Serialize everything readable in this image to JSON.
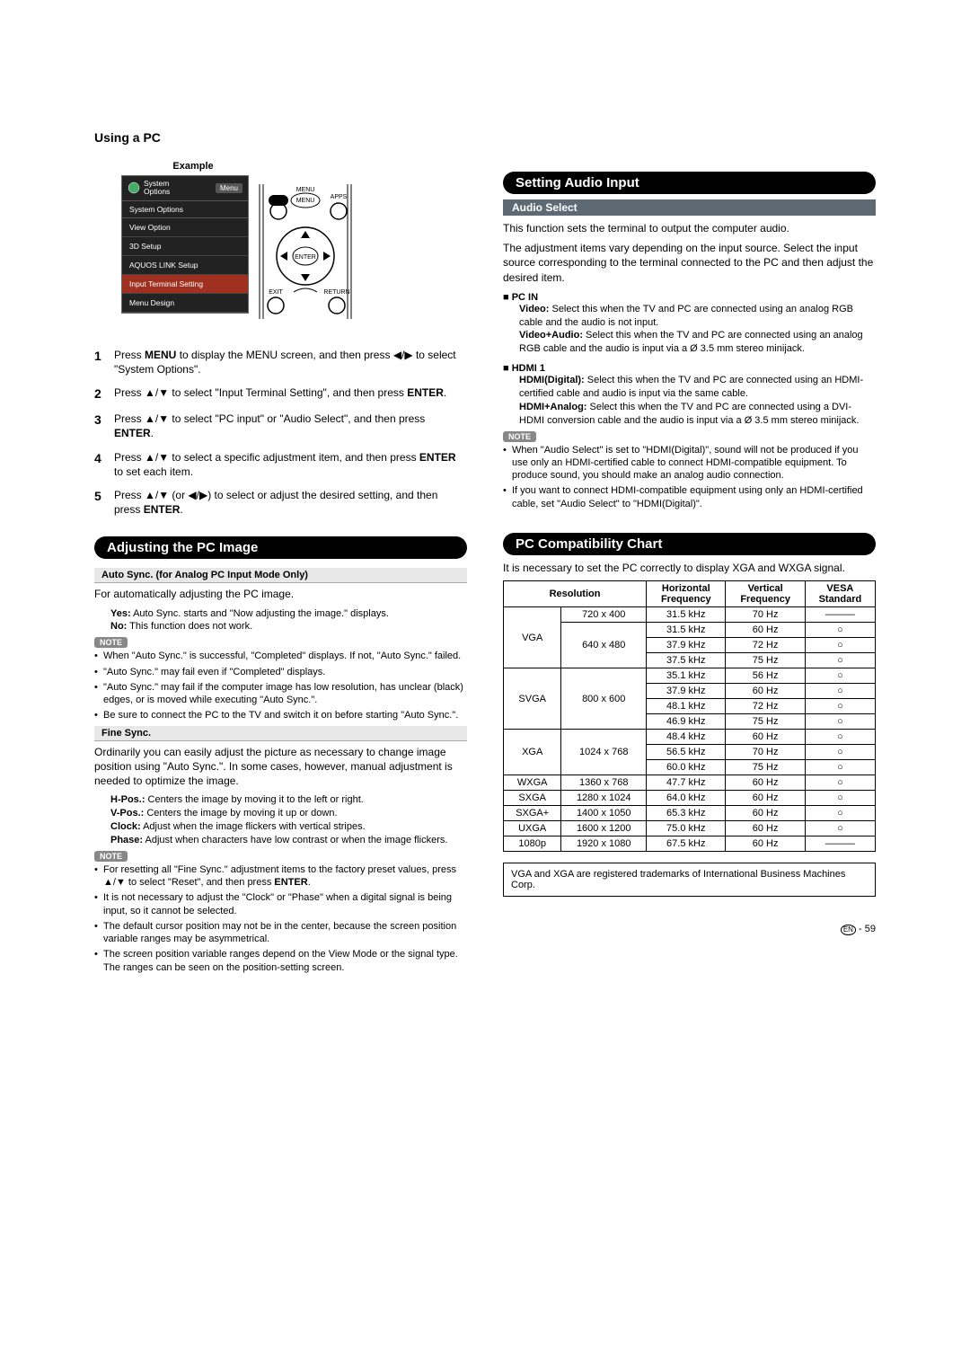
{
  "page_title": "Using a PC",
  "example_label": "Example",
  "menu": {
    "header_line1": "System",
    "header_line2": "Options",
    "header_tag": "Menu",
    "subtitle": "System Options",
    "items": [
      "View Option",
      "3D Setup",
      "AQUOS LINK Setup",
      "Input Terminal Setting",
      "Menu Design"
    ],
    "active_index": 3
  },
  "remote_labels": {
    "d3": "3D",
    "menu": "MENU",
    "apps": "APPS",
    "enter": "ENTER",
    "exit": "EXIT",
    "return": "RETURN"
  },
  "steps": [
    "Press <b>MENU</b> to display the MENU screen, and then press ◀/▶ to select \"System Options\".",
    "Press ▲/▼ to select \"Input Terminal Setting\", and then press <b>ENTER</b>.",
    "Press ▲/▼ to select \"PC input\" or \"Audio Select\", and then press <b>ENTER</b>.",
    "Press ▲/▼ to select a specific adjustment item, and then press <b>ENTER</b> to set each item.",
    "Press ▲/▼ (or ◀/▶) to select or adjust the desired setting, and then press <b>ENTER</b>."
  ],
  "adjusting": {
    "title": "Adjusting the PC Image",
    "auto_sync_header": "Auto Sync. (for Analog PC Input Mode Only)",
    "auto_sync_intro": "For automatically adjusting the PC image.",
    "auto_sync_defs": [
      {
        "term": "Yes:",
        "text": " Auto Sync. starts and \"Now adjusting the image.\" displays."
      },
      {
        "term": "No:",
        "text": " This function does not work."
      }
    ],
    "auto_sync_notes": [
      "When \"Auto Sync.\" is successful, \"Completed\" displays. If not, \"Auto Sync.\" failed.",
      "\"Auto Sync.\" may fail even if \"Completed\" displays.",
      "\"Auto Sync.\" may fail if the computer image has low resolution, has unclear (black) edges, or is moved while executing \"Auto Sync.\".",
      "Be sure to connect the PC to the TV and switch it on before starting \"Auto Sync.\"."
    ],
    "fine_sync_header": "Fine Sync.",
    "fine_sync_intro": "Ordinarily you can easily adjust the picture as necessary to change image position using \"Auto Sync.\". In some cases, however, manual adjustment is needed to optimize the image.",
    "fine_sync_defs": [
      {
        "term": "H-Pos.:",
        "text": " Centers the image by moving it to the left or right."
      },
      {
        "term": "V-Pos.:",
        "text": " Centers the image by moving it up or down."
      },
      {
        "term": "Clock:",
        "text": " Adjust when the image flickers with vertical stripes."
      },
      {
        "term": "Phase:",
        "text": " Adjust when characters have low contrast or when the image flickers."
      }
    ],
    "fine_sync_notes": [
      "For resetting all \"Fine Sync.\" adjustment items to the factory preset values, press ▲/▼ to select \"Reset\", and then press <b>ENTER</b>.",
      "It is not necessary to adjust the \"Clock\" or \"Phase\" when a digital signal is being input, so it cannot be selected.",
      "The default cursor position may not be in the center, because the screen position variable ranges may be asymmetrical.",
      "The screen position variable ranges depend on the View Mode or the signal type. The ranges can be seen on the position-setting screen."
    ]
  },
  "audio": {
    "title": "Setting Audio Input",
    "sub": "Audio Select",
    "intro1": "This function sets the terminal to output the computer audio.",
    "intro2": "The adjustment items vary depending on the input source. Select the input source corresponding to the terminal connected to the PC and then adjust the desired item.",
    "pcin_header": "PC IN",
    "pcin_defs": [
      {
        "term": "Video:",
        "text": " Select this when the TV and PC are connected using an analog RGB cable and the audio is not input."
      },
      {
        "term": "Video+Audio:",
        "text": " Select this when the TV and PC are connected using an analog RGB cable and the audio is input via a Ø 3.5 mm stereo minijack."
      }
    ],
    "hdmi_header": "HDMI 1",
    "hdmi_defs": [
      {
        "term": "HDMI(Digital):",
        "text": " Select this when the TV and PC are connected using an HDMI-certified cable and audio is input via the same cable."
      },
      {
        "term": "HDMI+Analog:",
        "text": " Select this when the TV and PC are connected using a DVI-HDMI conversion cable and the audio is input via a Ø 3.5 mm stereo minijack."
      }
    ],
    "notes": [
      "When \"Audio Select\" is set to \"HDMI(Digital)\", sound will not be produced if you use only an HDMI-certified cable to connect HDMI-compatible equipment. To produce sound, you should make an analog audio connection.",
      "If you want to connect HDMI-compatible equipment using only an HDMI-certified cable, set \"Audio Select\" to \"HDMI(Digital)\"."
    ]
  },
  "compat": {
    "title": "PC Compatibility Chart",
    "intro": "It is necessary to set the PC correctly to display XGA and WXGA signal.",
    "headers": {
      "res": "Resolution",
      "h": "Horizontal Frequency",
      "v": "Vertical Frequency",
      "vesa": "VESA Standard"
    },
    "rows": [
      {
        "group": "VGA",
        "res": "720 x 400",
        "h": "31.5 kHz",
        "v": "70 Hz",
        "vesa": "———",
        "gspan": 4
      },
      {
        "res": "640 x 480",
        "h": "31.5 kHz",
        "v": "60 Hz",
        "vesa": "○",
        "rspan": 3
      },
      {
        "h": "37.9 kHz",
        "v": "72 Hz",
        "vesa": "○"
      },
      {
        "h": "37.5 kHz",
        "v": "75 Hz",
        "vesa": "○"
      },
      {
        "group": "SVGA",
        "res": "800 x 600",
        "h": "35.1 kHz",
        "v": "56 Hz",
        "vesa": "○",
        "gspan": 4,
        "rspan": 4
      },
      {
        "h": "37.9 kHz",
        "v": "60 Hz",
        "vesa": "○"
      },
      {
        "h": "48.1 kHz",
        "v": "72 Hz",
        "vesa": "○"
      },
      {
        "h": "46.9 kHz",
        "v": "75 Hz",
        "vesa": "○"
      },
      {
        "group": "XGA",
        "res": "1024 x 768",
        "h": "48.4 kHz",
        "v": "60 Hz",
        "vesa": "○",
        "gspan": 3,
        "rspan": 3
      },
      {
        "h": "56.5 kHz",
        "v": "70 Hz",
        "vesa": "○"
      },
      {
        "h": "60.0 kHz",
        "v": "75 Hz",
        "vesa": "○"
      },
      {
        "group": "WXGA",
        "res": "1360 x 768",
        "h": "47.7 kHz",
        "v": "60 Hz",
        "vesa": "○",
        "gspan": 1,
        "rspan": 1
      },
      {
        "group": "SXGA",
        "res": "1280 x 1024",
        "h": "64.0 kHz",
        "v": "60 Hz",
        "vesa": "○",
        "gspan": 1,
        "rspan": 1
      },
      {
        "group": "SXGA+",
        "res": "1400 x 1050",
        "h": "65.3 kHz",
        "v": "60 Hz",
        "vesa": "○",
        "gspan": 1,
        "rspan": 1
      },
      {
        "group": "UXGA",
        "res": "1600 x 1200",
        "h": "75.0 kHz",
        "v": "60 Hz",
        "vesa": "○",
        "gspan": 1,
        "rspan": 1
      },
      {
        "group": "1080p",
        "res": "1920 x 1080",
        "h": "67.5 kHz",
        "v": "60 Hz",
        "vesa": "———",
        "gspan": 1,
        "rspan": 1
      }
    ],
    "trademark": "VGA and XGA are registered trademarks of International Business Machines Corp."
  },
  "note_label": "NOTE",
  "page_number": "59",
  "page_lang": "EN"
}
